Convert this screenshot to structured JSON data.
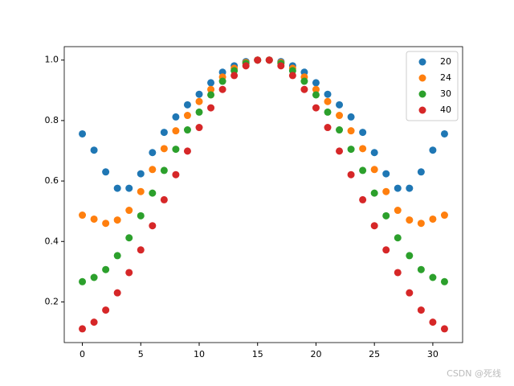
{
  "chart_data": {
    "type": "scatter",
    "x": [
      0,
      1,
      2,
      3,
      4,
      5,
      6,
      7,
      8,
      9,
      10,
      11,
      12,
      13,
      14,
      15,
      16,
      17,
      18,
      19,
      20,
      21,
      22,
      23,
      24,
      25,
      26,
      27,
      28,
      29,
      30,
      31
    ],
    "series": [
      {
        "name": "20",
        "color": "#1f77b4",
        "values": [
          0.756,
          0.702,
          0.63,
          0.576,
          0.576,
          0.624,
          0.694,
          0.761,
          0.812,
          0.852,
          0.887,
          0.925,
          0.96,
          0.981,
          0.995,
          1.0,
          1.0,
          0.995,
          0.981,
          0.96,
          0.925,
          0.887,
          0.852,
          0.812,
          0.761,
          0.694,
          0.624,
          0.576,
          0.576,
          0.63,
          0.702,
          0.756
        ]
      },
      {
        "name": "24",
        "color": "#ff7f0e",
        "values": [
          0.487,
          0.474,
          0.46,
          0.471,
          0.503,
          0.565,
          0.638,
          0.707,
          0.766,
          0.817,
          0.863,
          0.903,
          0.944,
          0.973,
          0.992,
          1.0,
          1.0,
          0.992,
          0.973,
          0.944,
          0.903,
          0.863,
          0.817,
          0.766,
          0.707,
          0.638,
          0.565,
          0.503,
          0.471,
          0.46,
          0.474,
          0.487
        ]
      },
      {
        "name": "30",
        "color": "#2ca02c",
        "values": [
          0.267,
          0.281,
          0.307,
          0.353,
          0.412,
          0.485,
          0.56,
          0.635,
          0.705,
          0.769,
          0.828,
          0.885,
          0.93,
          0.965,
          0.989,
          1.0,
          1.0,
          0.989,
          0.965,
          0.93,
          0.885,
          0.828,
          0.769,
          0.705,
          0.635,
          0.56,
          0.485,
          0.412,
          0.353,
          0.307,
          0.281,
          0.267
        ]
      },
      {
        "name": "40",
        "color": "#d62728",
        "values": [
          0.111,
          0.133,
          0.173,
          0.23,
          0.297,
          0.372,
          0.452,
          0.538,
          0.621,
          0.699,
          0.777,
          0.842,
          0.903,
          0.949,
          0.981,
          1.0,
          1.0,
          0.981,
          0.949,
          0.903,
          0.842,
          0.777,
          0.699,
          0.621,
          0.538,
          0.452,
          0.372,
          0.297,
          0.23,
          0.173,
          0.133,
          0.111
        ]
      }
    ],
    "xlim": [
      -1.55,
      32.55
    ],
    "xticks": [
      0,
      5,
      10,
      15,
      20,
      25,
      30
    ],
    "ylim": [
      0.0655,
      1.0445
    ],
    "yticks": [
      {
        "value": 0.2,
        "label": "0.2"
      },
      {
        "value": 0.4,
        "label": "0.4"
      },
      {
        "value": 0.6,
        "label": "0.6"
      },
      {
        "value": 0.8,
        "label": "0.8"
      },
      {
        "value": 1.0,
        "label": "1.0"
      }
    ],
    "legend": "upper right",
    "watermark": "CSDN @死线"
  }
}
